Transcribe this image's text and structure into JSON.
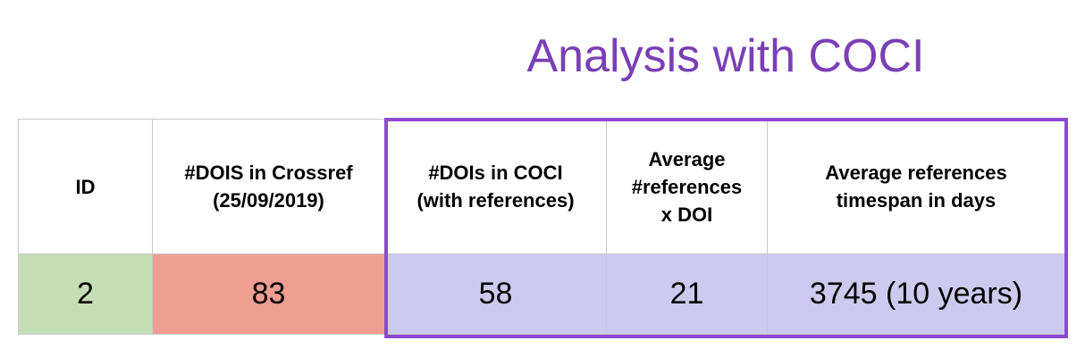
{
  "title": "Analysis with COCI",
  "colors": {
    "title": "#7a3fb5",
    "highlight_border": "#8a4ad3",
    "id_cell": "#c5ddb5",
    "crossref_cell": "#f09d92",
    "coci_cells": "#cdcaf0",
    "grid": "#c8c8c8"
  },
  "table": {
    "headers": [
      "ID",
      "#DOIS in Crossref\n(25/09/2019)",
      "#DOIs in COCI\n(with references)",
      "Average\n#references\nx DOI",
      "Average references\ntimespan in days"
    ],
    "rows": [
      [
        "2",
        "83",
        "58",
        "21",
        "3745 (10 years)"
      ]
    ]
  }
}
